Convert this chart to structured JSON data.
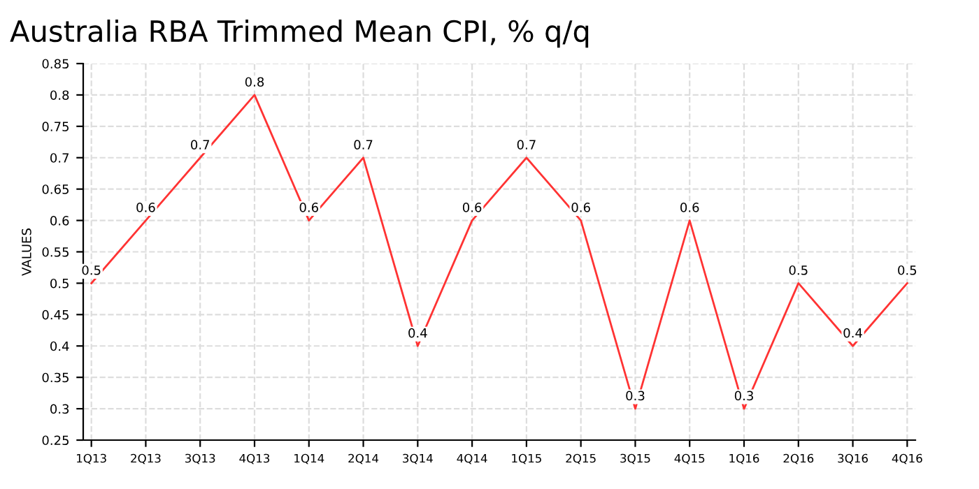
{
  "chart_data": {
    "type": "line",
    "title": "Australia RBA Trimmed Mean CPI, % q/q",
    "ylabel": "VALUES",
    "categories": [
      "1Q13",
      "2Q13",
      "3Q13",
      "4Q13",
      "1Q14",
      "2Q14",
      "3Q14",
      "4Q14",
      "1Q15",
      "2Q15",
      "3Q15",
      "4Q15",
      "1Q16",
      "2Q16",
      "3Q16",
      "4Q16"
    ],
    "series": [
      {
        "color": "#ff3333",
        "values": [
          0.5,
          0.6,
          0.7,
          0.8,
          0.6,
          0.7,
          0.4,
          0.6,
          0.7,
          0.6,
          0.3,
          0.6,
          0.3,
          0.5,
          0.4,
          0.5
        ]
      }
    ],
    "ylim": [
      0.25,
      0.85
    ],
    "yticks": [
      0.25,
      0.3,
      0.35,
      0.4,
      0.45,
      0.5,
      0.55,
      0.6,
      0.65,
      0.7,
      0.75,
      0.8,
      0.85
    ],
    "grid": true,
    "data_labels": true,
    "marker": "none",
    "line_style": "solid"
  }
}
